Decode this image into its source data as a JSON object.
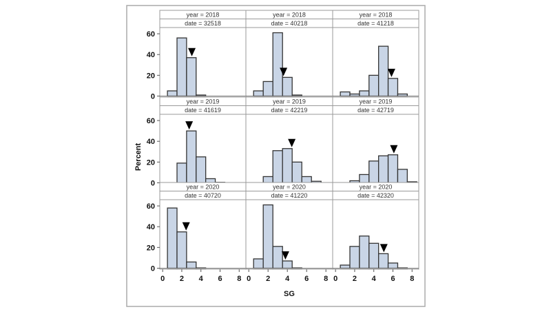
{
  "chart_data": {
    "type": "bar",
    "subtype": "paneled histogram",
    "xlabel": "SG",
    "ylabel": "Percent",
    "xlim": [
      -0.3,
      8.7
    ],
    "ylim": [
      0,
      66
    ],
    "xticks": [
      0,
      2,
      4,
      6,
      8
    ],
    "yticks": [
      0,
      20,
      40,
      60
    ],
    "bin_width": 1,
    "bar_color": "#c9d5e6",
    "grid": false,
    "panels": [
      {
        "year_label": "year = 2018",
        "date_label": "date = 32518",
        "bins": [
          1,
          2,
          3,
          4
        ],
        "values": [
          5,
          56,
          37,
          1
        ],
        "marker_x": 3.05
      },
      {
        "year_label": "year = 2018",
        "date_label": "date = 40218",
        "bins": [
          1,
          2,
          3,
          4,
          5
        ],
        "values": [
          5,
          14,
          61,
          18,
          1
        ],
        "marker_x": 3.6
      },
      {
        "year_label": "year = 2018",
        "date_label": "date = 41218",
        "bins": [
          1,
          2,
          3,
          4,
          5,
          6,
          7
        ],
        "values": [
          4,
          2,
          5,
          20,
          48,
          17,
          2
        ],
        "marker_x": 5.85
      },
      {
        "year_label": "year = 2019",
        "date_label": "date = 41619",
        "bins": [
          2,
          3,
          4,
          5,
          6
        ],
        "values": [
          19,
          50,
          25,
          4,
          0.5
        ],
        "marker_x": 2.77
      },
      {
        "year_label": "year = 2019",
        "date_label": "date = 42219",
        "bins": [
          2,
          3,
          4,
          5,
          6,
          7
        ],
        "values": [
          6,
          31,
          33,
          20,
          6,
          1.5
        ],
        "marker_x": 4.46
      },
      {
        "year_label": "year = 2019",
        "date_label": "date = 42719",
        "bins": [
          2,
          3,
          4,
          5,
          6,
          7,
          8
        ],
        "values": [
          2,
          8,
          21,
          26,
          27,
          13,
          1
        ],
        "marker_x": 6.1
      },
      {
        "year_label": "year = 2020",
        "date_label": "date = 40720",
        "bins": [
          1,
          2,
          3,
          4
        ],
        "values": [
          58,
          35,
          6,
          0.3
        ],
        "marker_x": 2.45
      },
      {
        "year_label": "year = 2020",
        "date_label": "date = 41220",
        "bins": [
          1,
          2,
          3,
          4,
          5
        ],
        "values": [
          9,
          61,
          21,
          7,
          0.3
        ],
        "marker_x": 3.8
      },
      {
        "year_label": "year = 2020",
        "date_label": "date = 42320",
        "bins": [
          1,
          2,
          3,
          4,
          5,
          6,
          7
        ],
        "values": [
          3,
          21,
          31,
          24,
          14,
          5,
          0.3
        ],
        "marker_x": 5.05
      }
    ]
  }
}
